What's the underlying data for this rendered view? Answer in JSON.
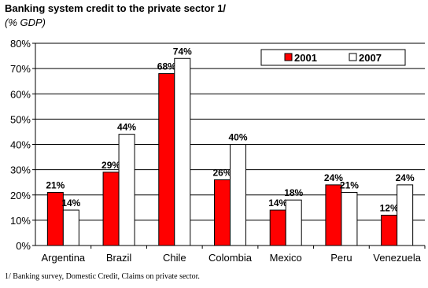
{
  "chart_data": {
    "type": "bar",
    "title": "Banking system credit to the private sector 1/",
    "subtitle": "(% GDP)",
    "categories": [
      "Argentina",
      "Brazil",
      "Chile",
      "Colombia",
      "Mexico",
      "Peru",
      "Venezuela"
    ],
    "series": [
      {
        "name": "2001",
        "values": [
          21,
          29,
          68,
          26,
          14,
          24,
          12
        ],
        "labels": [
          "21%",
          "29%",
          "68%",
          "26%",
          "14%",
          "24%",
          "12%"
        ],
        "color": "#ff0000"
      },
      {
        "name": "2007",
        "values": [
          14,
          44,
          74,
          40,
          18,
          21,
          24
        ],
        "labels": [
          "14%",
          "44%",
          "74%",
          "40%",
          "18%",
          "21%",
          "24%"
        ],
        "color": "#ffffff"
      }
    ],
    "yticks": [
      "0%",
      "10%",
      "20%",
      "30%",
      "40%",
      "50%",
      "60%",
      "70%",
      "80%"
    ],
    "ylim": [
      0,
      80
    ],
    "grid": true,
    "legend_position": "top-right"
  },
  "footnote": "1/ Banking survey, Domestic Credit, Claims on private sector."
}
